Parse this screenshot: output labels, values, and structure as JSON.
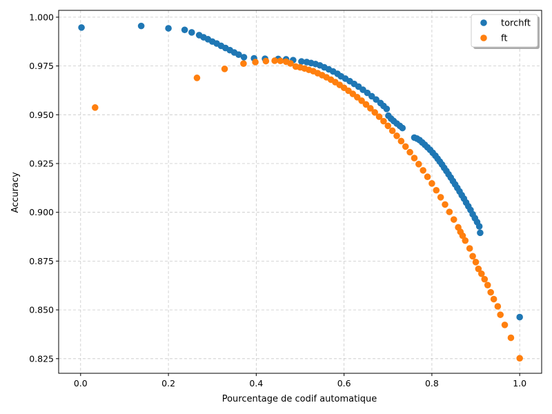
{
  "chart_data": {
    "type": "scatter",
    "title": "",
    "xlabel": "Pourcentage de codif automatique",
    "ylabel": "Accuracy",
    "xlim": [
      -0.05,
      1.05
    ],
    "ylim": [
      0.8175,
      1.0035
    ],
    "xticks": [
      0.0,
      0.2,
      0.4,
      0.6,
      0.8,
      1.0
    ],
    "xtick_labels": [
      "0.0",
      "0.2",
      "0.4",
      "0.6",
      "0.8",
      "1.0"
    ],
    "yticks": [
      0.825,
      0.85,
      0.875,
      0.9,
      0.925,
      0.95,
      0.975,
      1.0
    ],
    "ytick_labels": [
      "0.825",
      "0.850",
      "0.875",
      "0.900",
      "0.925",
      "0.950",
      "0.975",
      "1.000"
    ],
    "grid": true,
    "legend_position": "top-right",
    "series": [
      {
        "name": "torchft",
        "color": "#1f77b4",
        "points": [
          [
            0.002,
            0.9947
          ],
          [
            0.138,
            0.9955
          ],
          [
            0.2,
            0.9943
          ],
          [
            0.237,
            0.9935
          ],
          [
            0.253,
            0.9922
          ],
          [
            0.27,
            0.9908
          ],
          [
            0.28,
            0.9897
          ],
          [
            0.29,
            0.9887
          ],
          [
            0.3,
            0.9875
          ],
          [
            0.31,
            0.9865
          ],
          [
            0.32,
            0.9853
          ],
          [
            0.33,
            0.9842
          ],
          [
            0.34,
            0.9831
          ],
          [
            0.35,
            0.9819
          ],
          [
            0.36,
            0.9808
          ],
          [
            0.372,
            0.9795
          ],
          [
            0.395,
            0.9789
          ],
          [
            0.42,
            0.9787
          ],
          [
            0.45,
            0.9786
          ],
          [
            0.468,
            0.9784
          ],
          [
            0.484,
            0.978
          ],
          [
            0.503,
            0.9773
          ],
          [
            0.515,
            0.977
          ],
          [
            0.525,
            0.9765
          ],
          [
            0.535,
            0.976
          ],
          [
            0.545,
            0.9753
          ],
          [
            0.555,
            0.9743
          ],
          [
            0.565,
            0.9733
          ],
          [
            0.575,
            0.9722
          ],
          [
            0.585,
            0.971
          ],
          [
            0.593,
            0.9697
          ],
          [
            0.603,
            0.9685
          ],
          [
            0.613,
            0.9672
          ],
          [
            0.623,
            0.9658
          ],
          [
            0.633,
            0.9644
          ],
          [
            0.643,
            0.9628
          ],
          [
            0.653,
            0.9612
          ],
          [
            0.663,
            0.9595
          ],
          [
            0.673,
            0.9578
          ],
          [
            0.683,
            0.956
          ],
          [
            0.69,
            0.9545
          ],
          [
            0.697,
            0.953
          ],
          [
            0.701,
            0.9495
          ],
          [
            0.707,
            0.948
          ],
          [
            0.713,
            0.9468
          ],
          [
            0.72,
            0.9455
          ],
          [
            0.727,
            0.9443
          ],
          [
            0.733,
            0.9432
          ],
          [
            0.76,
            0.9383
          ],
          [
            0.766,
            0.9378
          ],
          [
            0.772,
            0.937
          ],
          [
            0.778,
            0.9358
          ],
          [
            0.784,
            0.9346
          ],
          [
            0.79,
            0.9333
          ],
          [
            0.796,
            0.932
          ],
          [
            0.802,
            0.9305
          ],
          [
            0.808,
            0.929
          ],
          [
            0.813,
            0.9275
          ],
          [
            0.818,
            0.926
          ],
          [
            0.823,
            0.9245
          ],
          [
            0.828,
            0.9228
          ],
          [
            0.833,
            0.9212
          ],
          [
            0.838,
            0.9195
          ],
          [
            0.843,
            0.9178
          ],
          [
            0.848,
            0.916
          ],
          [
            0.853,
            0.9143
          ],
          [
            0.858,
            0.9125
          ],
          [
            0.863,
            0.9107
          ],
          [
            0.868,
            0.9088
          ],
          [
            0.873,
            0.907
          ],
          [
            0.878,
            0.905
          ],
          [
            0.883,
            0.9031
          ],
          [
            0.888,
            0.9012
          ],
          [
            0.893,
            0.899
          ],
          [
            0.898,
            0.897
          ],
          [
            0.903,
            0.895
          ],
          [
            0.908,
            0.8928
          ],
          [
            0.91,
            0.8895
          ],
          [
            1.0,
            0.8463
          ]
        ]
      },
      {
        "name": "ft",
        "color": "#ff7f0e",
        "points": [
          [
            0.033,
            0.9537
          ],
          [
            0.265,
            0.9689
          ],
          [
            0.328,
            0.9735
          ],
          [
            0.371,
            0.9762
          ],
          [
            0.398,
            0.977
          ],
          [
            0.422,
            0.9775
          ],
          [
            0.442,
            0.9777
          ],
          [
            0.455,
            0.9776
          ],
          [
            0.468,
            0.9772
          ],
          [
            0.478,
            0.9763
          ],
          [
            0.49,
            0.9747
          ],
          [
            0.5,
            0.9743
          ],
          [
            0.51,
            0.9737
          ],
          [
            0.52,
            0.973
          ],
          [
            0.53,
            0.9723
          ],
          [
            0.54,
            0.9713
          ],
          [
            0.55,
            0.9703
          ],
          [
            0.56,
            0.9692
          ],
          [
            0.57,
            0.968
          ],
          [
            0.58,
            0.9667
          ],
          [
            0.59,
            0.9653
          ],
          [
            0.6,
            0.9638
          ],
          [
            0.61,
            0.9623
          ],
          [
            0.62,
            0.9607
          ],
          [
            0.63,
            0.959
          ],
          [
            0.64,
            0.9572
          ],
          [
            0.65,
            0.9553
          ],
          [
            0.66,
            0.9533
          ],
          [
            0.67,
            0.9512
          ],
          [
            0.68,
            0.949
          ],
          [
            0.69,
            0.9467
          ],
          [
            0.7,
            0.9443
          ],
          [
            0.71,
            0.9418
          ],
          [
            0.72,
            0.9392
          ],
          [
            0.73,
            0.9365
          ],
          [
            0.74,
            0.9337
          ],
          [
            0.75,
            0.9308
          ],
          [
            0.76,
            0.9278
          ],
          [
            0.77,
            0.9247
          ],
          [
            0.78,
            0.9215
          ],
          [
            0.79,
            0.9182
          ],
          [
            0.8,
            0.9148
          ],
          [
            0.81,
            0.9113
          ],
          [
            0.82,
            0.9077
          ],
          [
            0.83,
            0.904
          ],
          [
            0.84,
            0.9002
          ],
          [
            0.85,
            0.8963
          ],
          [
            0.86,
            0.8923
          ],
          [
            0.865,
            0.89
          ],
          [
            0.87,
            0.888
          ],
          [
            0.876,
            0.8855
          ],
          [
            0.886,
            0.8815
          ],
          [
            0.893,
            0.8775
          ],
          [
            0.9,
            0.8745
          ],
          [
            0.906,
            0.871
          ],
          [
            0.913,
            0.8685
          ],
          [
            0.92,
            0.8657
          ],
          [
            0.927,
            0.8627
          ],
          [
            0.934,
            0.859
          ],
          [
            0.941,
            0.8555
          ],
          [
            0.95,
            0.8518
          ],
          [
            0.956,
            0.8475
          ],
          [
            0.966,
            0.8423
          ],
          [
            0.98,
            0.8357
          ],
          [
            1.0,
            0.8252
          ]
        ]
      }
    ]
  }
}
